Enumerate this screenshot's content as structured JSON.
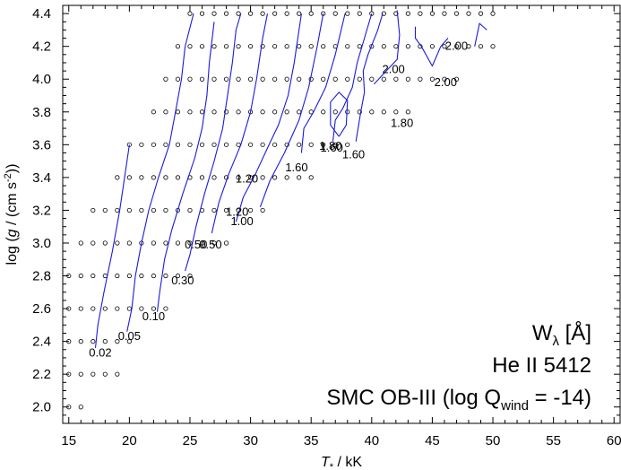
{
  "chart_data": {
    "type": "contour",
    "xlabel_main": "T",
    "xlabel_sub": "*",
    "xlabel_rest": " / kK",
    "ylabel_main": "log (",
    "ylabel_g": "g",
    "ylabel_rest": " / (cm s",
    "ylabel_sup": "-2",
    "ylabel_end": "))",
    "xlim": [
      14.5,
      60.5
    ],
    "ylim": [
      1.9,
      4.45
    ],
    "x_ticks": [
      15,
      20,
      25,
      30,
      35,
      40,
      45,
      50,
      55,
      60
    ],
    "y_ticks": [
      2.0,
      2.2,
      2.4,
      2.6,
      2.8,
      3.0,
      3.2,
      3.4,
      3.6,
      3.8,
      4.0,
      4.2,
      4.4
    ],
    "y_tick_labels": [
      "2.0",
      "2.2",
      "2.4",
      "2.6",
      "2.8",
      "3.0",
      "3.2",
      "3.4",
      "3.6",
      "3.8",
      "4.0",
      "4.2",
      "4.4"
    ],
    "annotation": {
      "line1_main": "W",
      "line1_sub": "λ",
      "line1_rest": "  [Å]",
      "line2": "He II 5412",
      "line3_main": "SMC OB-III (log Q",
      "line3_sub": "wind",
      "line3_rest": " = -14)"
    },
    "grid_rows": [
      {
        "logg": 2.0,
        "teff": [
          15,
          16
        ]
      },
      {
        "logg": 2.2,
        "teff": [
          15,
          16,
          17,
          18,
          19
        ]
      },
      {
        "logg": 2.4,
        "teff": [
          15,
          16,
          17,
          18,
          19,
          20
        ]
      },
      {
        "logg": 2.6,
        "teff": [
          15,
          16,
          17,
          18,
          19,
          20,
          21,
          22,
          23
        ]
      },
      {
        "logg": 2.8,
        "teff": [
          15,
          16,
          17,
          18,
          19,
          20,
          21,
          22,
          23,
          24,
          25
        ]
      },
      {
        "logg": 3.0,
        "teff": [
          16,
          17,
          18,
          19,
          20,
          21,
          22,
          23,
          24,
          25,
          26,
          27,
          28
        ]
      },
      {
        "logg": 3.2,
        "teff": [
          17,
          18,
          19,
          20,
          21,
          22,
          23,
          24,
          25,
          26,
          27,
          28,
          29,
          30,
          31
        ]
      },
      {
        "logg": 3.4,
        "teff": [
          19,
          20,
          21,
          22,
          23,
          24,
          25,
          26,
          27,
          28,
          29,
          30,
          31,
          32,
          33,
          34,
          35
        ]
      },
      {
        "logg": 3.6,
        "teff": [
          20,
          21,
          22,
          23,
          24,
          25,
          26,
          27,
          28,
          29,
          30,
          31,
          32,
          33,
          34,
          35,
          36,
          37,
          38
        ]
      },
      {
        "logg": 3.8,
        "teff": [
          22,
          23,
          24,
          25,
          26,
          27,
          28,
          29,
          30,
          31,
          32,
          33,
          34,
          35,
          36,
          37,
          38,
          39,
          40,
          41,
          42,
          43
        ]
      },
      {
        "logg": 4.0,
        "teff": [
          23,
          24,
          25,
          26,
          27,
          28,
          29,
          30,
          31,
          32,
          33,
          34,
          35,
          36,
          37,
          38,
          39,
          40,
          41,
          42,
          43,
          44,
          45,
          46,
          47
        ]
      },
      {
        "logg": 4.2,
        "teff": [
          24,
          25,
          26,
          27,
          28,
          29,
          30,
          31,
          32,
          33,
          34,
          35,
          36,
          37,
          38,
          39,
          40,
          41,
          42,
          43,
          44,
          45,
          46,
          47,
          48,
          49,
          50
        ]
      },
      {
        "logg": 4.4,
        "teff": [
          25,
          26,
          27,
          28,
          29,
          30,
          31,
          32,
          33,
          34,
          35,
          36,
          37,
          38,
          39,
          40,
          41,
          42,
          43,
          44,
          45,
          46,
          47,
          48,
          49,
          50
        ]
      }
    ],
    "contours": [
      {
        "level": "0.02",
        "points": [
          [
            17.2,
            2.36
          ],
          [
            17.4,
            2.5
          ],
          [
            17.9,
            2.7
          ],
          [
            18.6,
            2.95
          ],
          [
            19.2,
            3.2
          ],
          [
            19.6,
            3.4
          ],
          [
            20.0,
            3.6
          ]
        ]
      },
      {
        "level": "0.05",
        "points": [
          [
            19.8,
            2.46
          ],
          [
            20.2,
            2.6
          ],
          [
            20.5,
            2.8
          ],
          [
            21.0,
            3.0
          ],
          [
            21.6,
            3.2
          ],
          [
            22.4,
            3.4
          ],
          [
            23.3,
            3.6
          ],
          [
            23.8,
            3.8
          ],
          [
            24.3,
            4.0
          ],
          [
            24.6,
            4.2
          ],
          [
            25.3,
            4.4
          ]
        ]
      },
      {
        "level": "0.10",
        "points": [
          [
            22.3,
            2.58
          ],
          [
            22.5,
            2.7
          ],
          [
            22.9,
            2.9
          ],
          [
            23.5,
            3.08
          ],
          [
            24.4,
            3.3
          ],
          [
            25.4,
            3.52
          ],
          [
            26.0,
            3.7
          ],
          [
            26.4,
            3.9
          ],
          [
            26.6,
            4.1
          ],
          [
            27.0,
            4.35
          ]
        ]
      },
      {
        "level": "0.30",
        "points": [
          [
            24.6,
            2.83
          ],
          [
            25.0,
            2.93
          ],
          [
            25.5,
            3.1
          ],
          [
            26.2,
            3.3
          ],
          [
            27.0,
            3.5
          ],
          [
            27.7,
            3.7
          ],
          [
            28.1,
            3.9
          ],
          [
            28.5,
            4.1
          ],
          [
            28.8,
            4.3
          ],
          [
            29.2,
            4.4
          ]
        ]
      },
      {
        "level": "0.50",
        "points": [
          [
            26.8,
            3.06
          ],
          [
            27.4,
            3.25
          ],
          [
            28.2,
            3.42
          ],
          [
            29.2,
            3.6
          ],
          [
            30.0,
            3.8
          ],
          [
            30.5,
            4.0
          ],
          [
            31.0,
            4.25
          ],
          [
            31.4,
            4.4
          ]
        ]
      },
      {
        "level": "1.00",
        "points": [
          [
            28.8,
            3.13
          ],
          [
            29.4,
            3.28
          ],
          [
            30.4,
            3.42
          ],
          [
            31.4,
            3.58
          ],
          [
            32.3,
            3.72
          ],
          [
            33.1,
            3.9
          ],
          [
            33.6,
            4.1
          ],
          [
            34.2,
            4.4
          ]
        ]
      },
      {
        "level": "1.20",
        "points": [
          [
            30.8,
            3.22
          ],
          [
            31.6,
            3.38
          ],
          [
            32.8,
            3.55
          ],
          [
            34.0,
            3.75
          ],
          [
            34.8,
            3.95
          ],
          [
            35.5,
            4.2
          ],
          [
            36.0,
            4.4
          ]
        ]
      },
      {
        "level": "1.60",
        "points": [
          [
            34.2,
            3.55
          ],
          [
            34.4,
            3.7
          ],
          [
            35.2,
            3.8
          ],
          [
            36.2,
            3.95
          ],
          [
            37.0,
            4.15
          ],
          [
            37.8,
            4.4
          ]
        ]
      },
      {
        "level": "1.80",
        "points": [
          [
            36.8,
            3.62
          ],
          [
            37.0,
            3.75
          ],
          [
            37.6,
            3.82
          ],
          [
            38.4,
            3.95
          ],
          [
            38.8,
            4.1
          ],
          [
            39.4,
            4.25
          ],
          [
            40.0,
            4.4
          ]
        ]
      },
      {
        "level": "1.80",
        "points": [
          [
            38.7,
            3.62
          ],
          [
            39.1,
            3.8
          ],
          [
            39.4,
            3.92
          ],
          [
            39.3,
            4.05
          ],
          [
            39.7,
            4.15
          ],
          [
            40.5,
            4.3
          ],
          [
            40.9,
            4.4
          ]
        ]
      },
      {
        "level": "1.80",
        "points": [
          [
            37.3,
            3.65
          ],
          [
            36.6,
            3.72
          ],
          [
            36.6,
            3.86
          ],
          [
            37.3,
            3.92
          ],
          [
            38.0,
            3.87
          ],
          [
            37.9,
            3.72
          ],
          [
            37.3,
            3.65
          ]
        ]
      },
      {
        "level": "2.00",
        "points": [
          [
            40.2,
            3.97
          ],
          [
            41.2,
            4.05
          ],
          [
            42.1,
            4.12
          ],
          [
            42.3,
            4.27
          ],
          [
            42.1,
            4.42
          ]
        ]
      },
      {
        "level": "2.00",
        "points": [
          [
            43.6,
            4.32
          ],
          [
            43.6,
            4.25
          ],
          [
            44.1,
            4.2
          ],
          [
            45.0,
            4.08
          ],
          [
            45.7,
            4.2
          ],
          [
            46.3,
            4.25
          ]
        ]
      },
      {
        "level": "2.00",
        "points": [
          [
            48.5,
            4.2
          ],
          [
            48.9,
            4.34
          ],
          [
            49.5,
            4.3
          ]
        ]
      }
    ],
    "contour_labels": [
      {
        "text": "0.02",
        "x": 17.6,
        "y": 2.33
      },
      {
        "text": "0.05",
        "x": 20.0,
        "y": 2.43
      },
      {
        "text": "0.10",
        "x": 22.0,
        "y": 2.55
      },
      {
        "text": "0.30",
        "x": 24.4,
        "y": 2.77
      },
      {
        "text": "0.50",
        "x": 25.5,
        "y": 2.99
      },
      {
        "text": "0.50",
        "x": 26.7,
        "y": 2.99
      },
      {
        "text": "1.00",
        "x": 29.3,
        "y": 3.13
      },
      {
        "text": "1.20",
        "x": 28.9,
        "y": 3.19
      },
      {
        "text": "1.20",
        "x": 29.7,
        "y": 3.39
      },
      {
        "text": "1.60",
        "x": 33.8,
        "y": 3.46
      },
      {
        "text": "1.80",
        "x": 36.6,
        "y": 3.59
      },
      {
        "text": "1.60",
        "x": 36.7,
        "y": 3.58
      },
      {
        "text": "1.60",
        "x": 38.5,
        "y": 3.54
      },
      {
        "text": "1.80",
        "x": 42.5,
        "y": 3.73
      },
      {
        "text": "2.00",
        "x": 41.8,
        "y": 4.06
      },
      {
        "text": "2.00",
        "x": 46.1,
        "y": 3.98
      },
      {
        "text": "2.00",
        "x": 47.0,
        "y": 4.2
      }
    ],
    "colors": {
      "contour": "#1a1adf",
      "grid_point": "#000000",
      "axes": "#000000",
      "background": "#ffffff"
    }
  }
}
